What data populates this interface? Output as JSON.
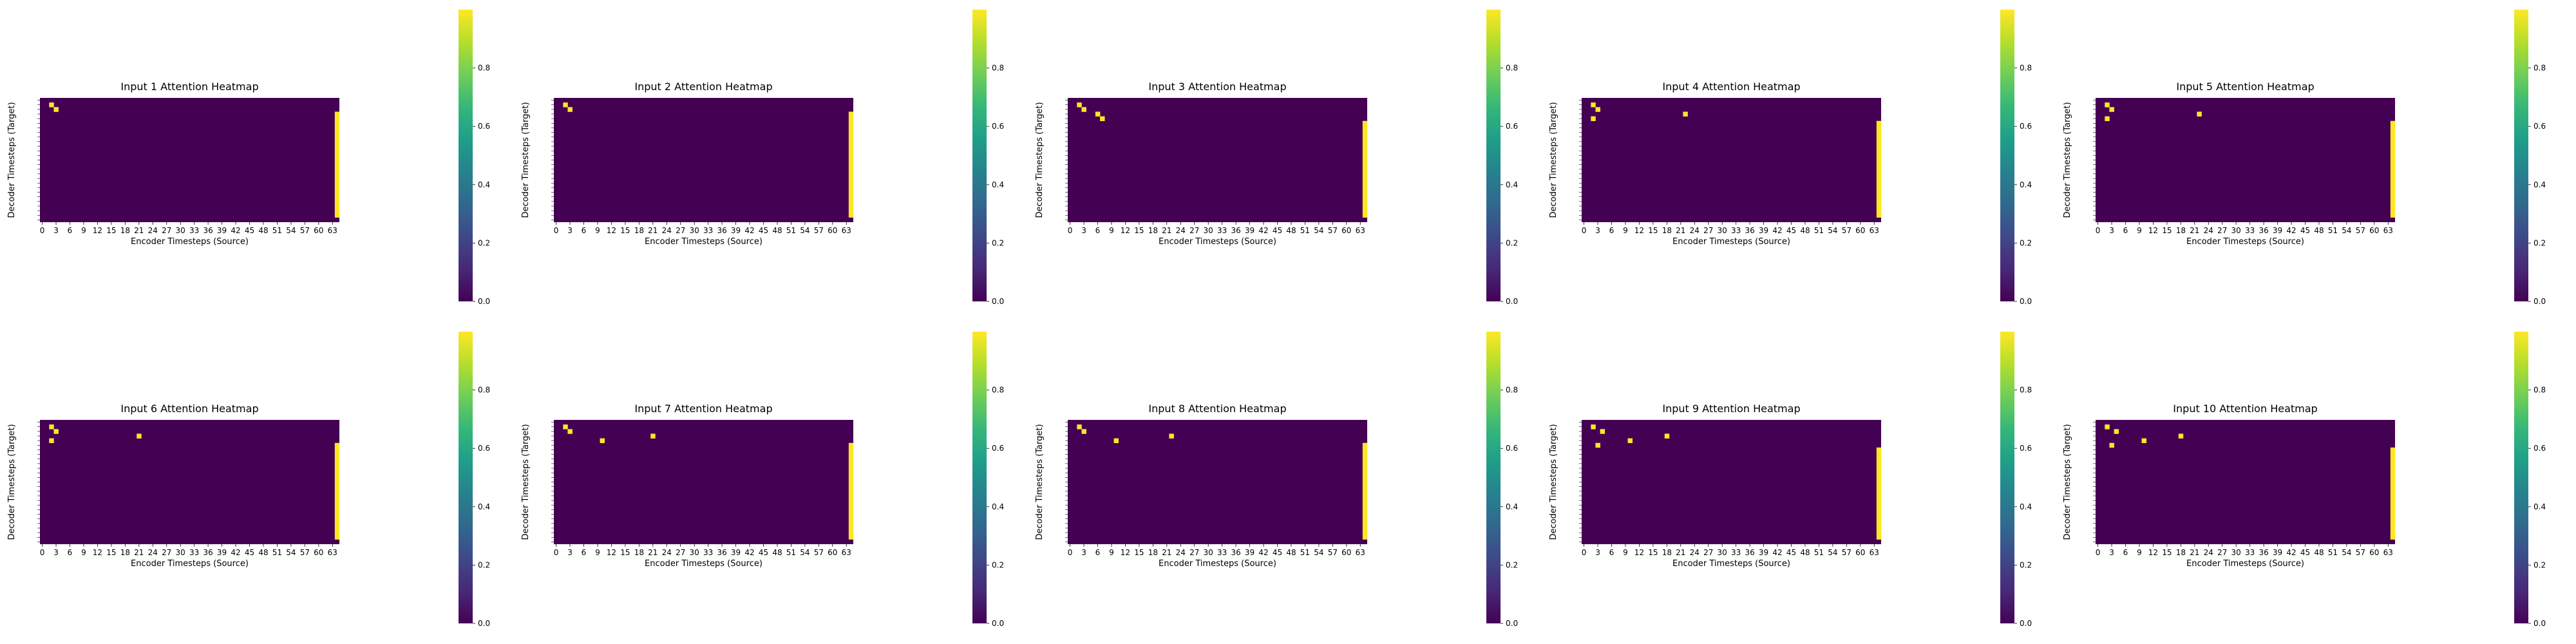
{
  "chart_data": [
    {
      "type": "heatmap",
      "title": "Input 1 Attention Heatmap",
      "xlabel": "Encoder Timesteps (Source)",
      "ylabel": "Decoder Timesteps (Target)",
      "x_range": [
        0,
        65
      ],
      "y_range": [
        0,
        27
      ],
      "highlights": [
        {
          "x": 2,
          "y": 1
        },
        {
          "x": 3,
          "y": 2
        },
        {
          "x": 64,
          "y": 3
        }
      ],
      "last_column_high_from_row": 4,
      "value_range": [
        0,
        1
      ],
      "colormap": "viridis"
    },
    {
      "type": "heatmap",
      "title": "Input 2 Attention Heatmap",
      "xlabel": "Encoder Timesteps (Source)",
      "ylabel": "Decoder Timesteps (Target)",
      "x_range": [
        0,
        65
      ],
      "y_range": [
        0,
        27
      ],
      "highlights": [
        {
          "x": 2,
          "y": 1
        },
        {
          "x": 3,
          "y": 2
        },
        {
          "x": 64,
          "y": 3
        }
      ],
      "last_column_high_from_row": 4,
      "value_range": [
        0,
        1
      ],
      "colormap": "viridis"
    },
    {
      "type": "heatmap",
      "title": "Input 3 Attention Heatmap",
      "xlabel": "Encoder Timesteps (Source)",
      "ylabel": "Decoder Timesteps (Target)",
      "x_range": [
        0,
        65
      ],
      "y_range": [
        0,
        27
      ],
      "highlights": [
        {
          "x": 2,
          "y": 1
        },
        {
          "x": 3,
          "y": 2
        },
        {
          "x": 6,
          "y": 3
        },
        {
          "x": 7,
          "y": 4
        },
        {
          "x": 64,
          "y": 5
        }
      ],
      "last_column_high_from_row": 6,
      "value_range": [
        0,
        1
      ],
      "colormap": "viridis"
    },
    {
      "type": "heatmap",
      "title": "Input 4 Attention Heatmap",
      "xlabel": "Encoder Timesteps (Source)",
      "ylabel": "Decoder Timesteps (Target)",
      "x_range": [
        0,
        65
      ],
      "y_range": [
        0,
        27
      ],
      "highlights": [
        {
          "x": 2,
          "y": 1
        },
        {
          "x": 3,
          "y": 2
        },
        {
          "x": 22,
          "y": 3
        },
        {
          "x": 2,
          "y": 4
        },
        {
          "x": 64,
          "y": 5
        }
      ],
      "last_column_high_from_row": 6,
      "value_range": [
        0,
        1
      ],
      "colormap": "viridis"
    },
    {
      "type": "heatmap",
      "title": "Input 5 Attention Heatmap",
      "xlabel": "Encoder Timesteps (Source)",
      "ylabel": "Decoder Timesteps (Target)",
      "x_range": [
        0,
        65
      ],
      "y_range": [
        0,
        27
      ],
      "highlights": [
        {
          "x": 2,
          "y": 1
        },
        {
          "x": 3,
          "y": 2
        },
        {
          "x": 22,
          "y": 3
        },
        {
          "x": 2,
          "y": 4
        },
        {
          "x": 64,
          "y": 5
        }
      ],
      "last_column_high_from_row": 6,
      "value_range": [
        0,
        1
      ],
      "colormap": "viridis"
    },
    {
      "type": "heatmap",
      "title": "Input 6 Attention Heatmap",
      "xlabel": "Encoder Timesteps (Source)",
      "ylabel": "Decoder Timesteps (Target)",
      "x_range": [
        0,
        65
      ],
      "y_range": [
        0,
        27
      ],
      "highlights": [
        {
          "x": 2,
          "y": 1
        },
        {
          "x": 3,
          "y": 2
        },
        {
          "x": 21,
          "y": 3
        },
        {
          "x": 2,
          "y": 4
        },
        {
          "x": 64,
          "y": 5
        }
      ],
      "last_column_high_from_row": 6,
      "value_range": [
        0,
        1
      ],
      "colormap": "viridis"
    },
    {
      "type": "heatmap",
      "title": "Input 7 Attention Heatmap",
      "xlabel": "Encoder Timesteps (Source)",
      "ylabel": "Decoder Timesteps (Target)",
      "x_range": [
        0,
        65
      ],
      "y_range": [
        0,
        27
      ],
      "highlights": [
        {
          "x": 2,
          "y": 1
        },
        {
          "x": 3,
          "y": 2
        },
        {
          "x": 21,
          "y": 3
        },
        {
          "x": 10,
          "y": 4
        },
        {
          "x": 64,
          "y": 5
        }
      ],
      "last_column_high_from_row": 6,
      "value_range": [
        0,
        1
      ],
      "colormap": "viridis"
    },
    {
      "type": "heatmap",
      "title": "Input 8 Attention Heatmap",
      "xlabel": "Encoder Timesteps (Source)",
      "ylabel": "Decoder Timesteps (Target)",
      "x_range": [
        0,
        65
      ],
      "y_range": [
        0,
        27
      ],
      "highlights": [
        {
          "x": 2,
          "y": 1
        },
        {
          "x": 3,
          "y": 2
        },
        {
          "x": 22,
          "y": 3
        },
        {
          "x": 10,
          "y": 4
        },
        {
          "x": 64,
          "y": 5
        }
      ],
      "last_column_high_from_row": 6,
      "value_range": [
        0,
        1
      ],
      "colormap": "viridis"
    },
    {
      "type": "heatmap",
      "title": "Input 9 Attention Heatmap",
      "xlabel": "Encoder Timesteps (Source)",
      "ylabel": "Decoder Timesteps (Target)",
      "x_range": [
        0,
        65
      ],
      "y_range": [
        0,
        27
      ],
      "highlights": [
        {
          "x": 2,
          "y": 1
        },
        {
          "x": 4,
          "y": 2
        },
        {
          "x": 18,
          "y": 3
        },
        {
          "x": 10,
          "y": 4
        },
        {
          "x": 3,
          "y": 5
        },
        {
          "x": 64,
          "y": 6
        }
      ],
      "last_column_high_from_row": 7,
      "value_range": [
        0,
        1
      ],
      "colormap": "viridis"
    },
    {
      "type": "heatmap",
      "title": "Input 10 Attention Heatmap",
      "xlabel": "Encoder Timesteps (Source)",
      "ylabel": "Decoder Timesteps (Target)",
      "x_range": [
        0,
        65
      ],
      "y_range": [
        0,
        27
      ],
      "highlights": [
        {
          "x": 2,
          "y": 1
        },
        {
          "x": 4,
          "y": 2
        },
        {
          "x": 18,
          "y": 3
        },
        {
          "x": 10,
          "y": 4
        },
        {
          "x": 3,
          "y": 5
        },
        {
          "x": 64,
          "y": 6
        }
      ],
      "last_column_high_from_row": 7,
      "value_range": [
        0,
        1
      ],
      "colormap": "viridis"
    }
  ],
  "x_tick_labels": [
    "0",
    "3",
    "6",
    "9",
    "12",
    "15",
    "18",
    "21",
    "24",
    "27",
    "30",
    "33",
    "36",
    "39",
    "42",
    "45",
    "48",
    "51",
    "54",
    "57",
    "60",
    "63"
  ],
  "colorbar_ticks": [
    "0.0",
    "0.2",
    "0.4",
    "0.6",
    "0.8"
  ],
  "colors": {
    "low": "#440154",
    "high": "#fde725"
  }
}
